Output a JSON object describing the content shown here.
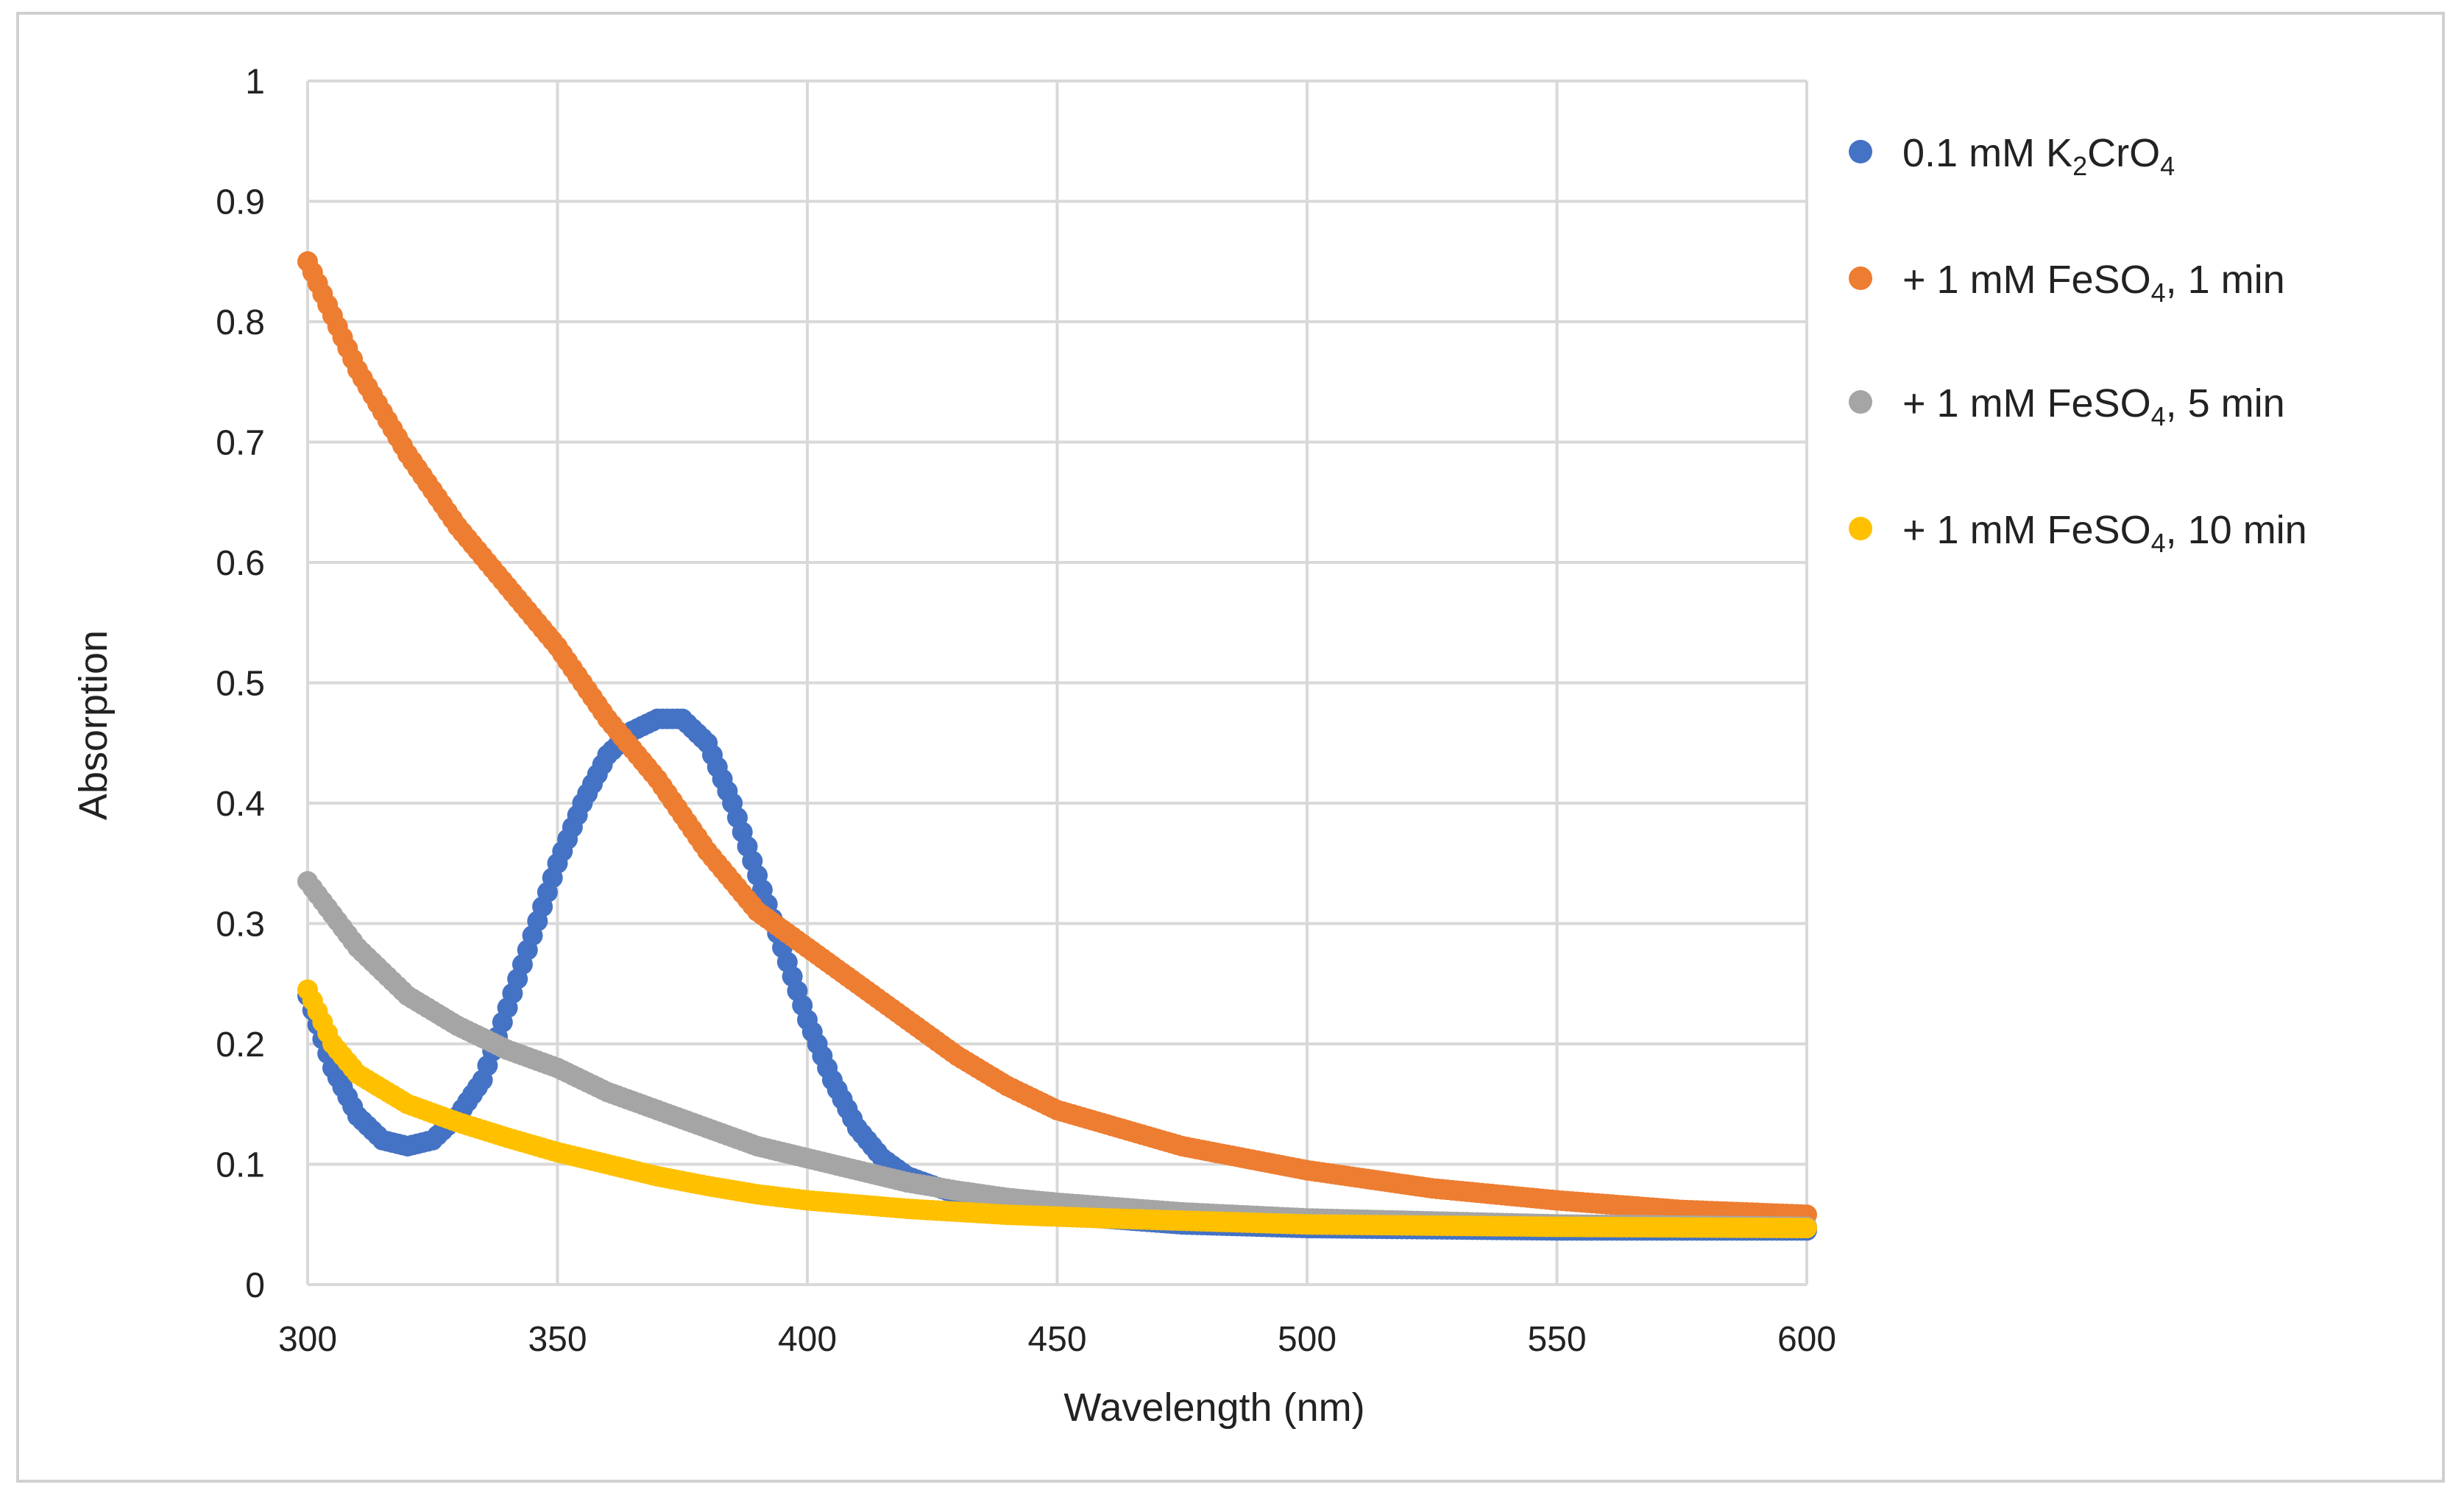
{
  "chart_data": {
    "type": "scatter",
    "title": "",
    "xlabel": "Wavelength (nm)",
    "ylabel": "Absorption",
    "xlim": [
      300,
      600
    ],
    "ylim": [
      0,
      1
    ],
    "x_ticks": [
      "300",
      "350",
      "400",
      "450",
      "500",
      "550",
      "600"
    ],
    "y_ticks": [
      "0",
      "0.1",
      "0.2",
      "0.3",
      "0.4",
      "0.5",
      "0.6",
      "0.7",
      "0.8",
      "0.9",
      "1"
    ],
    "grid": true,
    "legend_position": "right",
    "series": [
      {
        "name": "0.1 mM K2CrO4",
        "legend": {
          "pre": "0.1 mM K",
          "sub1": "2",
          "mid": "CrO",
          "sub2": "4",
          "post": ""
        },
        "color": "#4472C4",
        "points": [
          [
            300,
            0.24
          ],
          [
            305,
            0.18
          ],
          [
            310,
            0.14
          ],
          [
            315,
            0.12
          ],
          [
            320,
            0.115
          ],
          [
            325,
            0.12
          ],
          [
            330,
            0.14
          ],
          [
            335,
            0.17
          ],
          [
            340,
            0.23
          ],
          [
            345,
            0.29
          ],
          [
            350,
            0.35
          ],
          [
            355,
            0.4
          ],
          [
            360,
            0.44
          ],
          [
            365,
            0.46
          ],
          [
            370,
            0.47
          ],
          [
            375,
            0.47
          ],
          [
            380,
            0.45
          ],
          [
            385,
            0.4
          ],
          [
            390,
            0.34
          ],
          [
            395,
            0.28
          ],
          [
            400,
            0.22
          ],
          [
            405,
            0.17
          ],
          [
            410,
            0.13
          ],
          [
            415,
            0.105
          ],
          [
            420,
            0.09
          ],
          [
            430,
            0.075
          ],
          [
            440,
            0.065
          ],
          [
            450,
            0.058
          ],
          [
            475,
            0.05
          ],
          [
            500,
            0.047
          ],
          [
            550,
            0.045
          ],
          [
            600,
            0.045
          ]
        ]
      },
      {
        "name": "+ 1 mM FeSO4, 1 min",
        "legend": {
          "pre": "+ 1 mM FeSO",
          "sub1": "4",
          "mid": "",
          "sub2": "",
          "post": ", 1 min"
        },
        "color": "#ED7D31",
        "points": [
          [
            300,
            0.85
          ],
          [
            310,
            0.76
          ],
          [
            320,
            0.69
          ],
          [
            330,
            0.63
          ],
          [
            340,
            0.58
          ],
          [
            350,
            0.53
          ],
          [
            360,
            0.47
          ],
          [
            370,
            0.42
          ],
          [
            380,
            0.36
          ],
          [
            390,
            0.31
          ],
          [
            400,
            0.28
          ],
          [
            410,
            0.25
          ],
          [
            420,
            0.22
          ],
          [
            430,
            0.19
          ],
          [
            440,
            0.165
          ],
          [
            450,
            0.145
          ],
          [
            475,
            0.115
          ],
          [
            500,
            0.095
          ],
          [
            525,
            0.08
          ],
          [
            550,
            0.07
          ],
          [
            575,
            0.062
          ],
          [
            600,
            0.058
          ]
        ]
      },
      {
        "name": "+ 1 mM FeSO4, 5 min",
        "legend": {
          "pre": "+ 1 mM FeSO",
          "sub1": "4",
          "mid": "",
          "sub2": "",
          "post": ", 5 min"
        },
        "color": "#A5A5A5",
        "points": [
          [
            300,
            0.335
          ],
          [
            310,
            0.28
          ],
          [
            320,
            0.24
          ],
          [
            330,
            0.215
          ],
          [
            340,
            0.195
          ],
          [
            350,
            0.18
          ],
          [
            360,
            0.16
          ],
          [
            370,
            0.145
          ],
          [
            380,
            0.13
          ],
          [
            390,
            0.115
          ],
          [
            400,
            0.105
          ],
          [
            410,
            0.095
          ],
          [
            420,
            0.085
          ],
          [
            430,
            0.078
          ],
          [
            440,
            0.072
          ],
          [
            450,
            0.068
          ],
          [
            475,
            0.06
          ],
          [
            500,
            0.055
          ],
          [
            550,
            0.05
          ],
          [
            600,
            0.048
          ]
        ]
      },
      {
        "name": "+ 1 mM FeSO4, 10 min",
        "legend": {
          "pre": "+ 1 mM FeSO",
          "sub1": "4",
          "mid": "",
          "sub2": "",
          "post": ", 10 min"
        },
        "color": "#FFC000",
        "points": [
          [
            300,
            0.245
          ],
          [
            305,
            0.2
          ],
          [
            310,
            0.175
          ],
          [
            320,
            0.15
          ],
          [
            330,
            0.135
          ],
          [
            340,
            0.122
          ],
          [
            350,
            0.11
          ],
          [
            360,
            0.1
          ],
          [
            370,
            0.09
          ],
          [
            380,
            0.082
          ],
          [
            390,
            0.075
          ],
          [
            400,
            0.07
          ],
          [
            420,
            0.063
          ],
          [
            440,
            0.058
          ],
          [
            460,
            0.055
          ],
          [
            500,
            0.05
          ],
          [
            550,
            0.048
          ],
          [
            600,
            0.047
          ]
        ]
      }
    ]
  }
}
